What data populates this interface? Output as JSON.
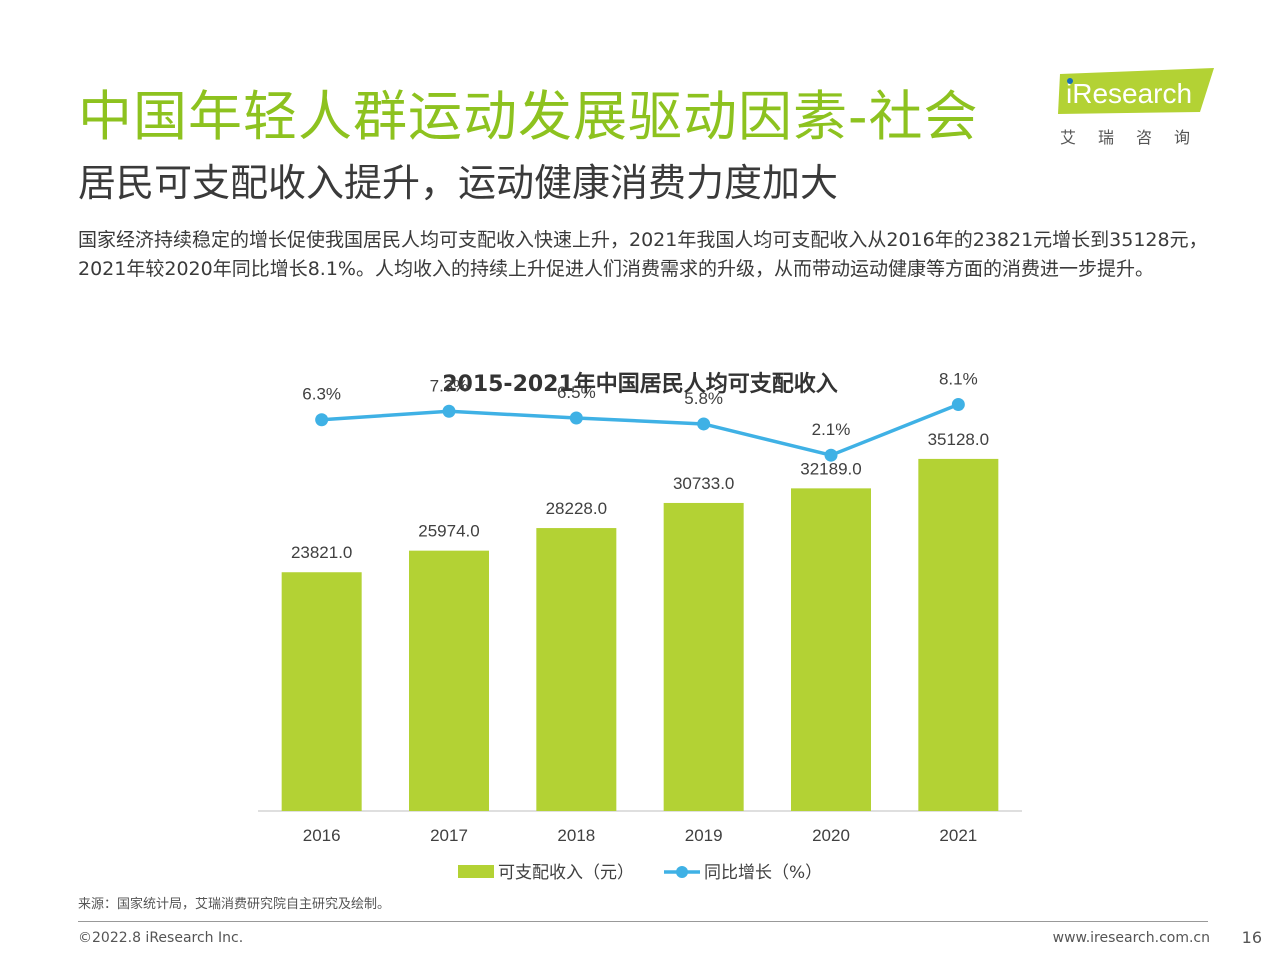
{
  "header": {
    "title": "中国年轻人群运动发展驱动因素-社会",
    "subtitle": "居民可支配收入提升，运动健康消费力度加大",
    "body": "国家经济持续稳定的增长促使我国居民人均可支配收入快速上升，2021年我国人均可支配收入从2016年的23821元增长到35128元，2021年较2020年同比增长8.1%。人均收入的持续上升促进人们消费需求的升级，从而带动运动健康等方面的消费进一步提升。"
  },
  "logo": {
    "brand": "iResearch",
    "cn": "艾瑞咨询",
    "color": "#b3d234"
  },
  "chart_data": {
    "type": "bar",
    "title": "2015-2021年中国居民人均可支配收入",
    "categories": [
      "2016",
      "2017",
      "2018",
      "2019",
      "2020",
      "2021"
    ],
    "series": [
      {
        "name": "可支配收入（元）",
        "kind": "bar",
        "color": "#b3d234",
        "values": [
          23821.0,
          25974.0,
          28228.0,
          30733.0,
          32189.0,
          35128.0
        ],
        "labels": [
          "23821.0",
          "25974.0",
          "28228.0",
          "30733.0",
          "32189.0",
          "35128.0"
        ]
      },
      {
        "name": "同比增长（%）",
        "kind": "line",
        "color": "#3fb1e5",
        "values": [
          6.3,
          7.3,
          6.5,
          5.8,
          2.1,
          8.1
        ],
        "labels": [
          "6.3%",
          "7.3%",
          "6.5%",
          "5.8%",
          "2.1%",
          "8.1%"
        ]
      }
    ],
    "ylim": [
      0,
      43000
    ],
    "y2lim": [
      -40,
      11
    ],
    "legend": "bottom",
    "grid": false
  },
  "footer": {
    "source": "来源：国家统计局，艾瑞消费研究院自主研究及绘制。",
    "copyright": "©2022.8 iResearch Inc.",
    "website": "www.iresearch.com.cn",
    "page": "16"
  }
}
